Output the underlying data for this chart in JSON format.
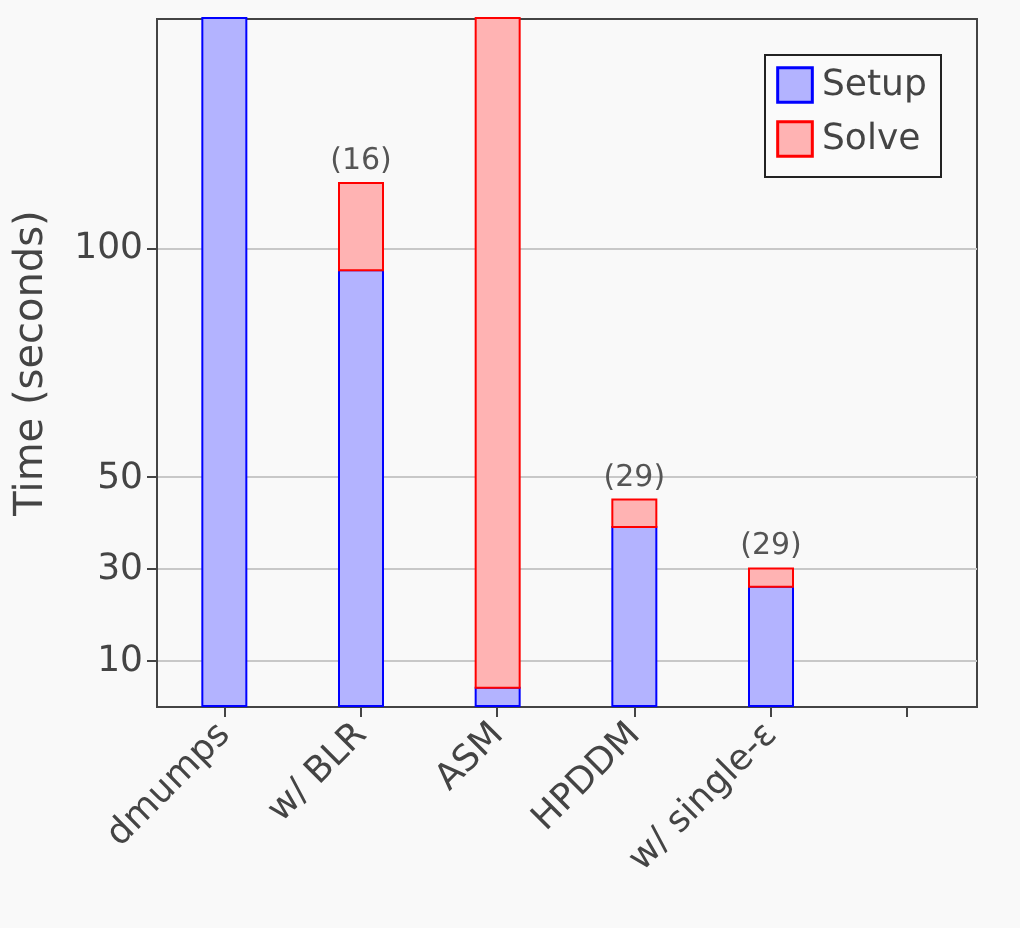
{
  "chart_data": {
    "type": "bar",
    "stacked": true,
    "ylabel": "Time (seconds)",
    "categories": [
      "dmumps",
      "w/ BLR",
      "ASM",
      "HPDDM",
      "w/ single-ε",
      null
    ],
    "series": [
      {
        "name": "Setup",
        "color": "#b3b3ff",
        "values": [
          150,
          95,
          4,
          39,
          26,
          null
        ]
      },
      {
        "name": "Solve",
        "color": "#ffb3b3",
        "values": [
          null,
          19,
          146,
          6,
          4,
          null
        ]
      }
    ],
    "ylim": [
      0,
      150
    ],
    "yticks": [
      10,
      30,
      50,
      100
    ],
    "grid": "y",
    "legend": "top right",
    "annotations": [
      {
        "text": "(16)",
        "x": "w/ BLR",
        "y": 114
      },
      {
        "text": "(29)",
        "x": "HPDDM",
        "y": 45
      },
      {
        "text": "(29)",
        "x": "w/ single-ε",
        "y": 30
      }
    ]
  }
}
